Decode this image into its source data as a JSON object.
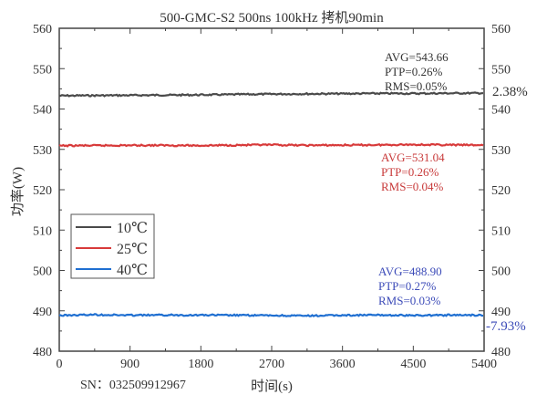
{
  "chart_data": {
    "type": "line",
    "title": "500-GMC-S2 500ns 100kHz 拷机90min",
    "xlabel": "时间(s)",
    "ylabel": "功率(W)",
    "xlim": [
      0,
      5400
    ],
    "ylim": [
      480,
      560
    ],
    "xticks": [
      "0",
      "900",
      "1800",
      "2700",
      "3600",
      "4500",
      "5400"
    ],
    "yticks": [
      "480",
      "490",
      "500",
      "510",
      "520",
      "530",
      "540",
      "550",
      "560"
    ],
    "yticks_right": [
      "480",
      "490",
      "500",
      "510",
      "520",
      "530",
      "540",
      "550",
      "560"
    ],
    "grid": false,
    "legend_position": "left-middle",
    "series": [
      {
        "name": "10℃",
        "color": "#4a4a4a",
        "x": [
          0,
          450,
          900,
          1350,
          1800,
          2250,
          2700,
          3150,
          3600,
          4050,
          4500,
          4950,
          5400
        ],
        "y": [
          543.3,
          543.35,
          543.4,
          543.45,
          543.5,
          543.6,
          543.7,
          543.75,
          543.8,
          543.85,
          543.85,
          543.9,
          543.95
        ],
        "stats": {
          "avg": "AVG=543.66",
          "ptp": "PTP=0.26%",
          "rms": "RMS=0.05%"
        }
      },
      {
        "name": "25℃",
        "color": "#d83a3a",
        "x": [
          0,
          450,
          900,
          1350,
          1800,
          2250,
          2700,
          3150,
          3600,
          4050,
          4500,
          4950,
          5400
        ],
        "y": [
          530.9,
          530.95,
          531.0,
          531.0,
          530.95,
          531.05,
          531.1,
          531.0,
          531.05,
          531.1,
          531.2,
          531.1,
          531.05
        ],
        "stats": {
          "avg": "AVG=531.04",
          "ptp": "PTP=0.26%",
          "rms": "RMS=0.04%"
        }
      },
      {
        "name": "40℃",
        "color": "#1f6fd1",
        "x": [
          0,
          450,
          900,
          1350,
          1800,
          2250,
          2700,
          3150,
          3600,
          4050,
          4500,
          4950,
          5400
        ],
        "y": [
          488.85,
          489.05,
          488.9,
          488.95,
          488.95,
          488.9,
          488.85,
          488.75,
          488.9,
          488.95,
          488.85,
          488.95,
          488.95
        ],
        "stats": {
          "avg": "AVG=488.90",
          "ptp": "PTP=0.27%",
          "rms": "RMS=0.03%"
        }
      }
    ],
    "annotations": {
      "upper_delta": "2.38%",
      "lower_delta": "-7.93%",
      "serial": "SN：032509912967"
    }
  }
}
